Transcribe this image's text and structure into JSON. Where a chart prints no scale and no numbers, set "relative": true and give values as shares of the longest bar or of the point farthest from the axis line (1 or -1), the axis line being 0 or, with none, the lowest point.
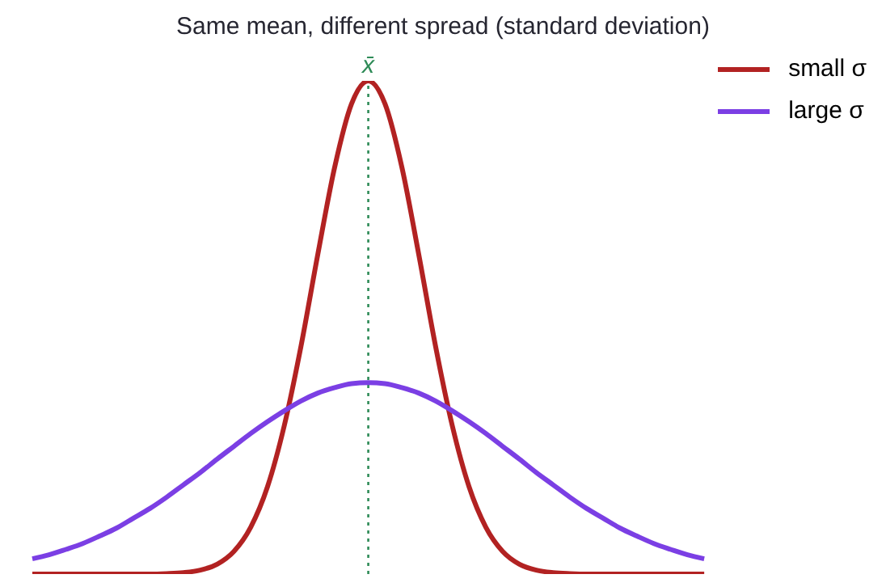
{
  "chart_data": {
    "type": "line",
    "title": "Same mean, different spread (standard deviation)",
    "relative": true,
    "tick_labels": false,
    "grid": false,
    "legend": "top right",
    "marker": "none",
    "line_style": "solid",
    "categories": [
      null,
      null,
      null,
      null,
      null,
      null,
      null,
      null,
      null,
      null,
      null,
      null,
      null,
      null,
      null,
      null,
      null,
      null,
      null,
      null,
      null,
      null,
      null,
      null,
      null,
      null,
      null,
      null,
      null,
      null,
      null,
      null,
      null,
      null,
      null,
      null,
      null,
      null,
      null,
      null,
      null
    ],
    "series": [
      {
        "name": "small σ",
        "color": "#b22222",
        "values": [
          0,
          0,
          0,
          0,
          0,
          0,
          0,
          0,
          0.001,
          0.003,
          0.008,
          0.02,
          0.046,
          0.095,
          0.177,
          0.301,
          0.463,
          0.649,
          0.825,
          0.953,
          1,
          0.953,
          0.825,
          0.649,
          0.463,
          0.301,
          0.177,
          0.095,
          0.046,
          0.02,
          0.008,
          0.003,
          0.001,
          0,
          0,
          0,
          0,
          0,
          0,
          0,
          0
        ]
      },
      {
        "name": "large σ",
        "color": "#7b3fe4",
        "values": [
          0.031,
          0.039,
          0.05,
          0.062,
          0.077,
          0.093,
          0.113,
          0.133,
          0.156,
          0.181,
          0.206,
          0.233,
          0.259,
          0.285,
          0.309,
          0.331,
          0.351,
          0.367,
          0.378,
          0.386,
          0.388,
          0.386,
          0.378,
          0.367,
          0.351,
          0.331,
          0.309,
          0.285,
          0.259,
          0.233,
          0.206,
          0.181,
          0.156,
          0.133,
          0.113,
          0.093,
          0.077,
          0.062,
          0.05,
          0.039,
          0.031
        ]
      }
    ],
    "annotations": [
      "x̄"
    ]
  }
}
